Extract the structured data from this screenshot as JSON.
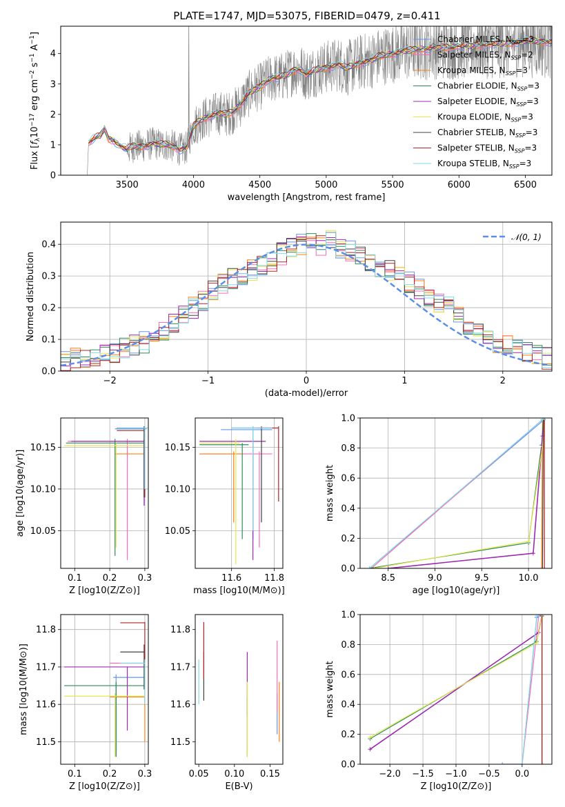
{
  "figure": {
    "title": "PLATE=1747, MJD=53075, FIBERID=0479, z=0.411"
  },
  "chart_data": [
    {
      "id": "spectrum",
      "type": "line",
      "xlabel": "wavelength [Angstrom, rest frame]",
      "ylabel": "Flux [f_λ 10^-17 erg cm^-2 s^-1 A^-1]",
      "xlim": [
        3000,
        6700
      ],
      "ylim": [
        0,
        4.9
      ],
      "xticks": [
        3500,
        4000,
        4500,
        5000,
        5500,
        6000,
        6500
      ],
      "yticks": [
        0,
        1,
        2,
        3,
        4
      ],
      "grid": false,
      "legend_position": "upper-right",
      "data_series": {
        "name": "",
        "color": "#808080",
        "x_range": [
          3200,
          6700
        ],
        "points": [
          [
            3200,
            0.0
          ],
          [
            3210,
            1.05
          ],
          [
            3250,
            1.2
          ],
          [
            3300,
            1.3
          ],
          [
            3330,
            1.55
          ],
          [
            3360,
            1.2
          ],
          [
            3400,
            1.15
          ],
          [
            3450,
            0.95
          ],
          [
            3500,
            0.85
          ],
          [
            3550,
            0.95
          ],
          [
            3600,
            0.95
          ],
          [
            3650,
            1.0
          ],
          [
            3700,
            1.05
          ],
          [
            3750,
            1.0
          ],
          [
            3800,
            1.0
          ],
          [
            3850,
            0.95
          ],
          [
            3900,
            0.85
          ],
          [
            3950,
            0.9
          ],
          [
            4000,
            1.6
          ],
          [
            4050,
            1.8
          ],
          [
            4100,
            1.9
          ],
          [
            4150,
            2.0
          ],
          [
            4200,
            2.05
          ],
          [
            4250,
            2.0
          ],
          [
            4300,
            2.1
          ],
          [
            4350,
            2.3
          ],
          [
            4400,
            2.6
          ],
          [
            4450,
            2.8
          ],
          [
            4500,
            2.9
          ],
          [
            4550,
            3.1
          ],
          [
            4600,
            3.2
          ],
          [
            4650,
            3.2
          ],
          [
            4700,
            3.3
          ],
          [
            4750,
            3.45
          ],
          [
            4800,
            3.5
          ],
          [
            4850,
            3.3
          ],
          [
            4900,
            3.4
          ],
          [
            4950,
            3.5
          ],
          [
            5000,
            3.55
          ],
          [
            5050,
            3.6
          ],
          [
            5100,
            3.65
          ],
          [
            5150,
            3.5
          ],
          [
            5200,
            3.6
          ],
          [
            5250,
            3.7
          ],
          [
            5300,
            3.75
          ],
          [
            5350,
            3.8
          ],
          [
            5400,
            3.9
          ],
          [
            5450,
            3.95
          ],
          [
            5500,
            4.0
          ],
          [
            5550,
            4.05
          ],
          [
            5600,
            4.1
          ],
          [
            5650,
            4.1
          ],
          [
            5700,
            4.15
          ],
          [
            5750,
            4.15
          ],
          [
            5800,
            4.2
          ],
          [
            5850,
            4.2
          ],
          [
            5900,
            4.2
          ],
          [
            5950,
            4.2
          ],
          [
            6000,
            4.25
          ],
          [
            6050,
            4.25
          ],
          [
            6100,
            4.25
          ],
          [
            6150,
            4.3
          ],
          [
            6200,
            4.3
          ],
          [
            6250,
            4.3
          ],
          [
            6300,
            4.3
          ],
          [
            6350,
            4.35
          ],
          [
            6400,
            4.35
          ],
          [
            6450,
            4.4
          ],
          [
            6500,
            4.4
          ],
          [
            6550,
            4.4
          ],
          [
            6600,
            4.4
          ],
          [
            6700,
            4.4
          ]
        ]
      },
      "series": [
        {
          "name": "Chabrier MILES, N_SSP=3",
          "color": "#6495ed"
        },
        {
          "name": "Salpeter MILES, N_SSP=2",
          "color": "#ff69b4"
        },
        {
          "name": "Kroupa MILES, N_SSP=3",
          "color": "#ff7f0e"
        },
        {
          "name": "Chabrier ELODIE, N_SSP=3",
          "color": "#2e8b57"
        },
        {
          "name": "Salpeter ELODIE, N_SSP=3",
          "color": "#9c27b0"
        },
        {
          "name": "Kroupa ELODIE, N_SSP=3",
          "color": "#e6e64d"
        },
        {
          "name": "Chabrier STELIB, N_SSP=3",
          "color": "#404040"
        },
        {
          "name": "Salpeter STELIB, N_SSP=3",
          "color": "#b22222"
        },
        {
          "name": "Kroupa STELIB, N_SSP=3",
          "color": "#7fdbe8"
        }
      ]
    },
    {
      "id": "residuals",
      "type": "line",
      "xlabel": "(data-model)/error",
      "ylabel": "Normed distribution",
      "xlim": [
        -2.5,
        2.5
      ],
      "ylim": [
        0,
        0.47
      ],
      "xticks": [
        -2,
        -1,
        0,
        1,
        2
      ],
      "yticks": [
        0.0,
        0.1,
        0.2,
        0.3,
        0.4
      ],
      "grid": true,
      "legend_position": "upper-right",
      "reference": {
        "name": "N(0,1)",
        "color": "#5b8ee6",
        "style": "dashed"
      },
      "histogram_envelope": {
        "bin_width": 0.1,
        "x_start": -2.5,
        "values": [
          0.03,
          0.04,
          0.04,
          0.04,
          0.05,
          0.06,
          0.07,
          0.08,
          0.09,
          0.11,
          0.13,
          0.15,
          0.18,
          0.2,
          0.22,
          0.25,
          0.28,
          0.29,
          0.3,
          0.32,
          0.33,
          0.35,
          0.37,
          0.39,
          0.4,
          0.41,
          0.4,
          0.41,
          0.39,
          0.38,
          0.36,
          0.35,
          0.33,
          0.32,
          0.3,
          0.28,
          0.26,
          0.24,
          0.22,
          0.2,
          0.17,
          0.15,
          0.13,
          0.11,
          0.09,
          0.08,
          0.07,
          0.06,
          0.05,
          0.04
        ]
      }
    },
    {
      "id": "age_vs_Z",
      "type": "scatter",
      "xlabel": "Z [log10(Z/Z⊙)]",
      "ylabel": "age  [log10(age/yr)]",
      "xlim": [
        0.06,
        0.31
      ],
      "ylim": [
        10.005,
        10.185
      ],
      "xticks": [
        0.1,
        0.2,
        0.3
      ],
      "yticks": [
        10.05,
        10.1,
        10.15
      ],
      "grid": true
    },
    {
      "id": "age_vs_mass",
      "type": "scatter",
      "xlabel": "mass [log10(M/M⊙)]",
      "ylabel": "",
      "xlim": [
        11.43,
        11.84
      ],
      "ylim": [
        10.005,
        10.185
      ],
      "xticks": [
        11.6,
        11.8
      ],
      "yticks": [
        10.05,
        10.1,
        10.15
      ],
      "grid": true
    },
    {
      "id": "weight_vs_age",
      "type": "line",
      "xlabel": "age  [log10(age/yr)]",
      "ylabel": "mass weight",
      "xlim": [
        8.2,
        10.25
      ],
      "ylim": [
        0,
        1.0
      ],
      "xticks": [
        8.5,
        9.0,
        9.5,
        10.0
      ],
      "yticks": [
        0.0,
        0.2,
        0.4,
        0.6,
        0.8,
        1.0
      ],
      "grid": true
    },
    {
      "id": "mass_vs_Z",
      "type": "scatter",
      "xlabel": "Z [log10(Z/Z⊙)]",
      "ylabel": "mass [log10(M/M⊙)]",
      "xlim": [
        0.06,
        0.31
      ],
      "ylim": [
        11.44,
        11.84
      ],
      "xticks": [
        0.1,
        0.2,
        0.3
      ],
      "yticks": [
        11.5,
        11.6,
        11.7,
        11.8
      ],
      "grid": true
    },
    {
      "id": "mass_vs_EBV",
      "type": "scatter",
      "xlabel": "E(B-V)",
      "ylabel": "",
      "xlim": [
        0.045,
        0.168
      ],
      "ylim": [
        11.44,
        11.84
      ],
      "xticks": [
        0.05,
        0.1,
        0.15
      ],
      "yticks": [
        11.5,
        11.6,
        11.7,
        11.8
      ],
      "grid": false
    },
    {
      "id": "weight_vs_Z",
      "type": "line",
      "xlabel": "Z [log10(Z/Z⊙)]",
      "ylabel": "mass weight",
      "xlim": [
        -2.45,
        0.45
      ],
      "ylim": [
        0,
        1.0
      ],
      "xticks": [
        -2.0,
        -1.5,
        -1.0,
        -0.5,
        0.0
      ],
      "yticks": [
        0.0,
        0.2,
        0.4,
        0.6,
        0.8,
        1.0
      ],
      "grid": true
    }
  ]
}
